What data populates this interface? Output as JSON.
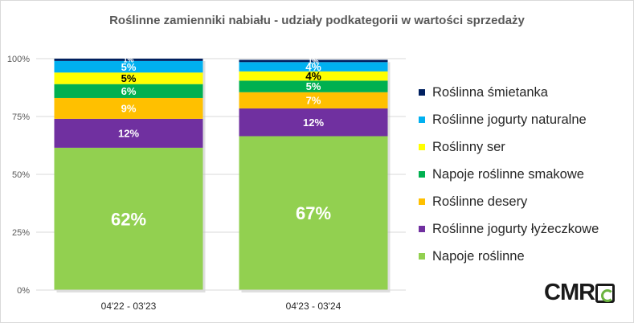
{
  "chart_data": {
    "type": "bar",
    "stacked": true,
    "title": "Roślinne zamienniki nabiału - udziały podkategorii w wartości sprzedaży",
    "categories": [
      "04'22 - 03'23",
      "04'23 - 03'24"
    ],
    "ylim": [
      0,
      100
    ],
    "yticks": [
      0,
      25,
      50,
      75,
      100
    ],
    "ytick_labels": [
      "0%",
      "25%",
      "50%",
      "75%",
      "100%"
    ],
    "grid": true,
    "legend_position": "right",
    "series": [
      {
        "name": "Napoje roślinne",
        "color": "#92d050",
        "values": [
          61.5,
          66.5
        ],
        "labels": [
          "62%",
          "67%"
        ]
      },
      {
        "name": "Roślinne jogurty łyżeczkowe",
        "color": "#7030a0",
        "values": [
          12.5,
          12
        ],
        "labels": [
          "12%",
          "12%"
        ]
      },
      {
        "name": "Roślinne desery",
        "color": "#ffc000",
        "values": [
          9,
          7
        ],
        "labels": [
          "9%",
          "7%"
        ]
      },
      {
        "name": "Napoje roślinne smakowe",
        "color": "#00b050",
        "values": [
          6,
          5
        ],
        "labels": [
          "6%",
          "5%"
        ]
      },
      {
        "name": "Roślinny ser",
        "color": "#ffff00",
        "values": [
          5,
          4
        ],
        "labels": [
          "5%",
          "4%"
        ]
      },
      {
        "name": "Roślinne jogurty naturalne",
        "color": "#00b0f0",
        "values": [
          5,
          4
        ],
        "labels": [
          "5%",
          "4%"
        ]
      },
      {
        "name": "Roślinna śmietanka",
        "color": "#002060",
        "values": [
          1,
          1
        ],
        "labels": [
          "1%",
          "1%"
        ]
      }
    ]
  },
  "legend_order": [
    6,
    5,
    4,
    3,
    2,
    1,
    0
  ],
  "logo": {
    "text": "CMR"
  }
}
